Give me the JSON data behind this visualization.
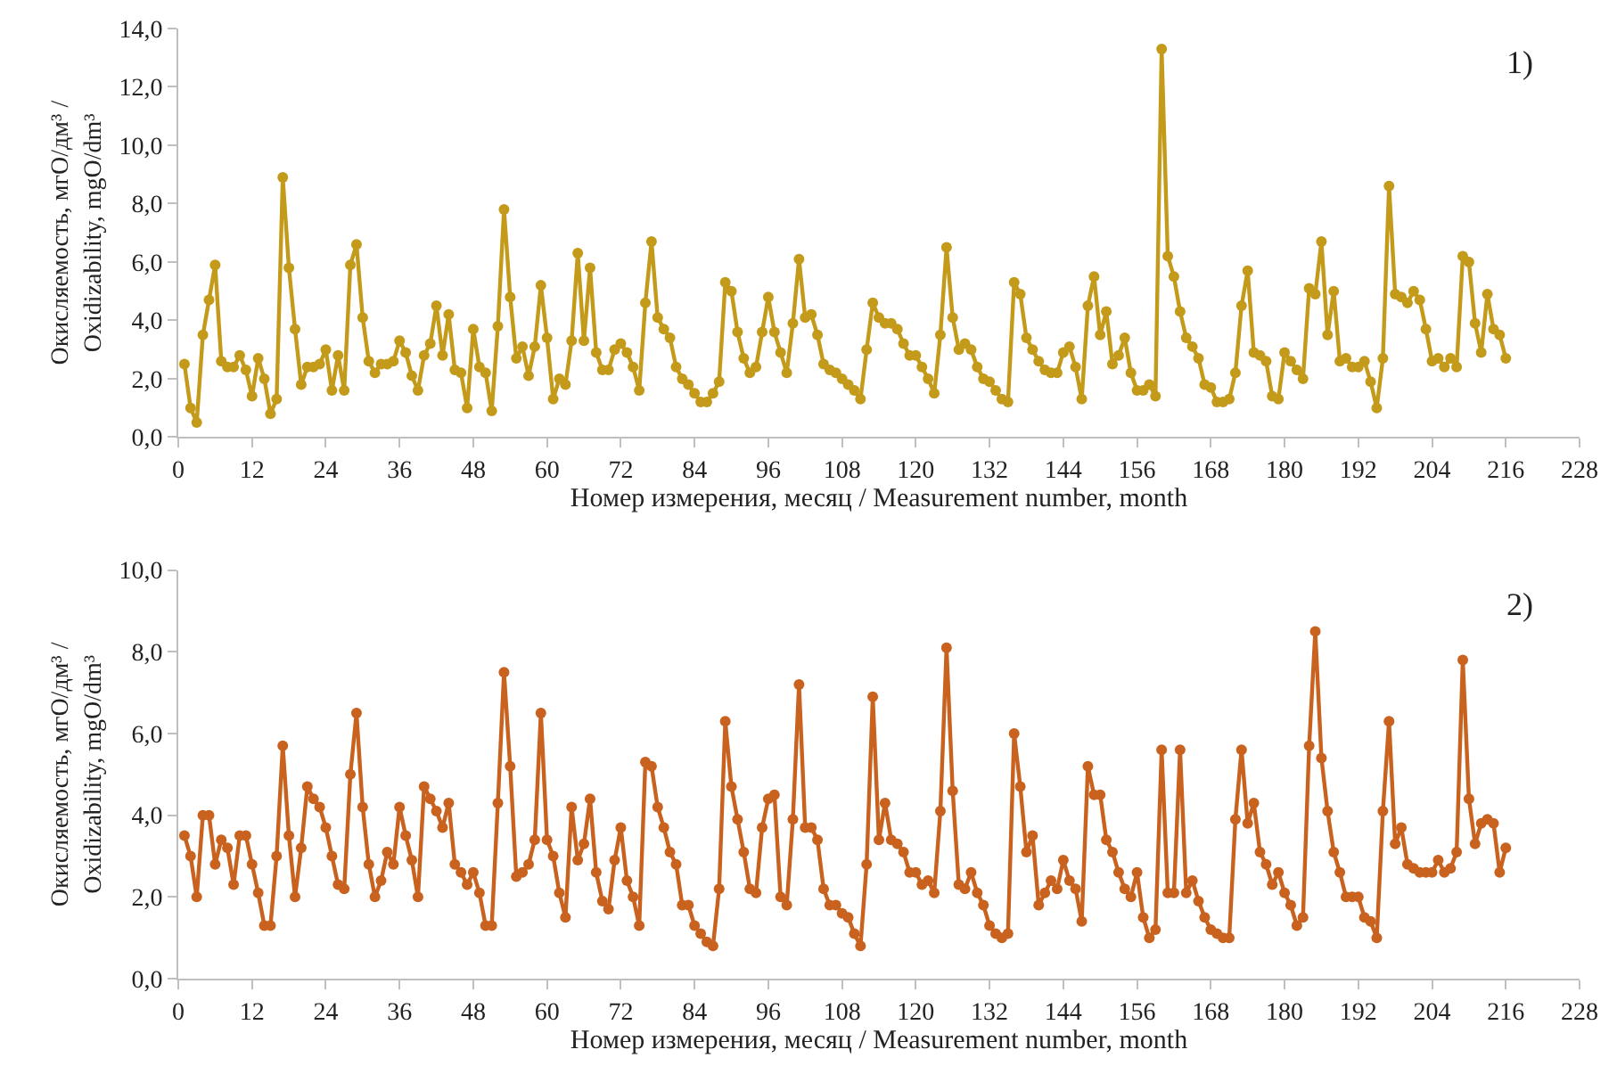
{
  "chart_data": [
    {
      "type": "line",
      "marker": "circle",
      "line_style": "solid",
      "xlabel": "Номер измерения, месяц / Measurement number, month",
      "ylabel": "Окисляемость, мгО/дм³ /\nOxidizability, mgO/dm³",
      "annotations": [
        "1)"
      ],
      "xlim": [
        0,
        228
      ],
      "xticks": [
        0,
        12,
        24,
        36,
        48,
        60,
        72,
        84,
        96,
        108,
        120,
        132,
        144,
        156,
        168,
        180,
        192,
        204,
        216,
        228
      ],
      "ylim": [
        0,
        14
      ],
      "yticks": [
        {
          "value": 0,
          "label": "0,0"
        },
        {
          "value": 2,
          "label": "2,0"
        },
        {
          "value": 4,
          "label": "4,0"
        },
        {
          "value": 6,
          "label": "6,0"
        },
        {
          "value": 8,
          "label": "8,0"
        },
        {
          "value": 10,
          "label": "10,0"
        },
        {
          "value": 12,
          "label": "12,0"
        },
        {
          "value": 14,
          "label": "14,0"
        }
      ],
      "x": [
        1,
        2,
        3,
        4,
        5,
        6,
        7,
        8,
        9,
        10,
        11,
        12,
        13,
        14,
        15,
        16,
        17,
        18,
        19,
        20,
        21,
        22,
        23,
        24,
        25,
        26,
        27,
        28,
        29,
        30,
        31,
        32,
        33,
        34,
        35,
        36,
        37,
        38,
        39,
        40,
        41,
        42,
        43,
        44,
        45,
        46,
        47,
        48,
        49,
        50,
        51,
        52,
        53,
        54,
        55,
        56,
        57,
        58,
        59,
        60,
        61,
        62,
        63,
        64,
        65,
        66,
        67,
        68,
        69,
        70,
        71,
        72,
        73,
        74,
        75,
        76,
        77,
        78,
        79,
        80,
        81,
        82,
        83,
        84,
        85,
        86,
        87,
        88,
        89,
        90,
        91,
        92,
        93,
        94,
        95,
        96,
        97,
        98,
        99,
        100,
        101,
        102,
        103,
        104,
        105,
        106,
        107,
        108,
        109,
        110,
        111,
        112,
        113,
        114,
        115,
        116,
        117,
        118,
        119,
        120,
        121,
        122,
        123,
        124,
        125,
        126,
        127,
        128,
        129,
        130,
        131,
        132,
        133,
        134,
        135,
        136,
        137,
        138,
        139,
        140,
        141,
        142,
        143,
        144,
        145,
        146,
        147,
        148,
        149,
        150,
        151,
        152,
        153,
        154,
        155,
        156,
        157,
        158,
        159,
        160,
        161,
        162,
        163,
        164,
        165,
        166,
        167,
        168,
        169,
        170,
        171,
        172,
        173,
        174,
        175,
        176,
        177,
        178,
        179,
        180,
        181,
        182,
        183,
        184,
        185,
        186,
        187,
        188,
        189,
        190,
        191,
        192,
        193,
        194,
        195,
        196,
        197,
        198,
        199,
        200,
        201,
        202,
        203,
        204,
        205,
        206,
        207,
        208,
        209,
        210,
        211,
        212,
        213,
        214,
        215,
        216
      ],
      "series": [
        {
          "color": "#c49a1a",
          "values": [
            2.5,
            1.0,
            0.5,
            3.5,
            4.7,
            5.9,
            2.6,
            2.4,
            2.4,
            2.8,
            2.3,
            1.4,
            2.7,
            2.0,
            0.8,
            1.3,
            8.9,
            5.8,
            3.7,
            1.8,
            2.4,
            2.4,
            2.5,
            3.0,
            1.6,
            2.8,
            1.6,
            5.9,
            6.6,
            4.1,
            2.6,
            2.2,
            2.5,
            2.5,
            2.6,
            3.3,
            2.9,
            2.1,
            1.6,
            2.8,
            3.2,
            4.5,
            2.8,
            4.2,
            2.3,
            2.2,
            1.0,
            3.7,
            2.4,
            2.2,
            0.9,
            3.8,
            7.8,
            4.8,
            2.7,
            3.1,
            2.1,
            3.1,
            5.2,
            3.4,
            1.3,
            2.0,
            1.8,
            3.3,
            6.3,
            3.3,
            5.8,
            2.9,
            2.3,
            2.3,
            3.0,
            3.2,
            2.9,
            2.4,
            1.6,
            4.6,
            6.7,
            4.1,
            3.7,
            3.4,
            2.4,
            2.0,
            1.8,
            1.5,
            1.2,
            1.2,
            1.5,
            1.9,
            5.3,
            5.0,
            3.6,
            2.7,
            2.2,
            2.4,
            3.6,
            4.8,
            3.6,
            2.9,
            2.2,
            3.9,
            6.1,
            4.1,
            4.2,
            3.5,
            2.5,
            2.3,
            2.2,
            2.0,
            1.8,
            1.6,
            1.3,
            3.0,
            4.6,
            4.1,
            3.9,
            3.9,
            3.7,
            3.2,
            2.8,
            2.8,
            2.4,
            2.0,
            1.5,
            3.5,
            6.5,
            4.1,
            3.0,
            3.2,
            3.0,
            2.4,
            2.0,
            1.9,
            1.6,
            1.3,
            1.2,
            5.3,
            4.9,
            3.4,
            3.0,
            2.6,
            2.3,
            2.2,
            2.2,
            2.9,
            3.1,
            2.4,
            1.3,
            4.5,
            5.5,
            3.5,
            4.3,
            2.5,
            2.8,
            3.4,
            2.2,
            1.6,
            1.6,
            1.8,
            1.4,
            13.3,
            6.2,
            5.5,
            4.3,
            3.4,
            3.1,
            2.7,
            1.8,
            1.7,
            1.2,
            1.2,
            1.3,
            2.2,
            4.5,
            5.7,
            2.9,
            2.8,
            2.6,
            1.4,
            1.3,
            2.9,
            2.6,
            2.3,
            2.0,
            5.1,
            4.9,
            6.7,
            3.5,
            5.0,
            2.6,
            2.7,
            2.4,
            2.4,
            2.6,
            1.9,
            1.0,
            2.7,
            8.6,
            4.9,
            4.8,
            4.6,
            5.0,
            4.7,
            3.7,
            2.6,
            2.7,
            2.4,
            2.7,
            2.4,
            6.2,
            6.0,
            3.9,
            2.9,
            4.9,
            3.7,
            3.5,
            2.7
          ]
        }
      ]
    },
    {
      "type": "line",
      "marker": "circle",
      "line_style": "solid",
      "xlabel": "Номер измерения, месяц / Measurement number, month",
      "ylabel": "Окисляемость, мгО/дм³ /\nOxidizability, mgO/dm³",
      "annotations": [
        "2)"
      ],
      "xlim": [
        0,
        228
      ],
      "xticks": [
        0,
        12,
        24,
        36,
        48,
        60,
        72,
        84,
        96,
        108,
        120,
        132,
        144,
        156,
        168,
        180,
        192,
        204,
        216,
        228
      ],
      "ylim": [
        0,
        10
      ],
      "yticks": [
        {
          "value": 0,
          "label": "0,0"
        },
        {
          "value": 2,
          "label": "2,0"
        },
        {
          "value": 4,
          "label": "4,0"
        },
        {
          "value": 6,
          "label": "6,0"
        },
        {
          "value": 8,
          "label": "8,0"
        },
        {
          "value": 10,
          "label": "10,0"
        }
      ],
      "x": [
        1,
        2,
        3,
        4,
        5,
        6,
        7,
        8,
        9,
        10,
        11,
        12,
        13,
        14,
        15,
        16,
        17,
        18,
        19,
        20,
        21,
        22,
        23,
        24,
        25,
        26,
        27,
        28,
        29,
        30,
        31,
        32,
        33,
        34,
        35,
        36,
        37,
        38,
        39,
        40,
        41,
        42,
        43,
        44,
        45,
        46,
        47,
        48,
        49,
        50,
        51,
        52,
        53,
        54,
        55,
        56,
        57,
        58,
        59,
        60,
        61,
        62,
        63,
        64,
        65,
        66,
        67,
        68,
        69,
        70,
        71,
        72,
        73,
        74,
        75,
        76,
        77,
        78,
        79,
        80,
        81,
        82,
        83,
        84,
        85,
        86,
        87,
        88,
        89,
        90,
        91,
        92,
        93,
        94,
        95,
        96,
        97,
        98,
        99,
        100,
        101,
        102,
        103,
        104,
        105,
        106,
        107,
        108,
        109,
        110,
        111,
        112,
        113,
        114,
        115,
        116,
        117,
        118,
        119,
        120,
        121,
        122,
        123,
        124,
        125,
        126,
        127,
        128,
        129,
        130,
        131,
        132,
        133,
        134,
        135,
        136,
        137,
        138,
        139,
        140,
        141,
        142,
        143,
        144,
        145,
        146,
        147,
        148,
        149,
        150,
        151,
        152,
        153,
        154,
        155,
        156,
        157,
        158,
        159,
        160,
        161,
        162,
        163,
        164,
        165,
        166,
        167,
        168,
        169,
        170,
        171,
        172,
        173,
        174,
        175,
        176,
        177,
        178,
        179,
        180,
        181,
        182,
        183,
        184,
        185,
        186,
        187,
        188,
        189,
        190,
        191,
        192,
        193,
        194,
        195,
        196,
        197,
        198,
        199,
        200,
        201,
        202,
        203,
        204,
        205,
        206,
        207,
        208,
        209,
        210,
        211,
        212,
        213,
        214,
        215,
        216
      ],
      "series": [
        {
          "color": "#c8621e",
          "values": [
            3.5,
            3.0,
            2.0,
            4.0,
            4.0,
            2.8,
            3.4,
            3.2,
            2.3,
            3.5,
            3.5,
            2.8,
            2.1,
            1.3,
            1.3,
            3.0,
            5.7,
            3.5,
            2.0,
            3.2,
            4.7,
            4.4,
            4.2,
            3.7,
            3.0,
            2.3,
            2.2,
            5.0,
            6.5,
            4.2,
            2.8,
            2.0,
            2.4,
            3.1,
            2.8,
            4.2,
            3.5,
            2.9,
            2.0,
            4.7,
            4.4,
            4.1,
            3.7,
            4.3,
            2.8,
            2.6,
            2.3,
            2.6,
            2.1,
            1.3,
            1.3,
            4.3,
            7.5,
            5.2,
            2.5,
            2.6,
            2.8,
            3.4,
            6.5,
            3.4,
            3.0,
            2.1,
            1.5,
            4.2,
            2.9,
            3.3,
            4.4,
            2.6,
            1.9,
            1.7,
            2.9,
            3.7,
            2.4,
            2.0,
            1.3,
            5.3,
            5.2,
            4.2,
            3.7,
            3.1,
            2.8,
            1.8,
            1.8,
            1.3,
            1.1,
            0.9,
            0.8,
            2.2,
            6.3,
            4.7,
            3.9,
            3.1,
            2.2,
            2.1,
            3.7,
            4.4,
            4.5,
            2.0,
            1.8,
            3.9,
            7.2,
            3.7,
            3.7,
            3.4,
            2.2,
            1.8,
            1.8,
            1.6,
            1.5,
            1.1,
            0.8,
            2.8,
            6.9,
            3.4,
            4.3,
            3.4,
            3.3,
            3.1,
            2.6,
            2.6,
            2.3,
            2.4,
            2.1,
            4.1,
            8.1,
            4.6,
            2.3,
            2.2,
            2.6,
            2.1,
            1.8,
            1.3,
            1.1,
            1.0,
            1.1,
            6.0,
            4.7,
            3.1,
            3.5,
            1.8,
            2.1,
            2.4,
            2.2,
            2.9,
            2.4,
            2.2,
            1.4,
            5.2,
            4.5,
            4.5,
            3.4,
            3.1,
            2.6,
            2.2,
            2.0,
            2.6,
            1.5,
            1.0,
            1.2,
            5.6,
            2.1,
            2.1,
            5.6,
            2.1,
            2.4,
            1.9,
            1.5,
            1.2,
            1.1,
            1.0,
            1.0,
            3.9,
            5.6,
            3.8,
            4.3,
            3.1,
            2.8,
            2.3,
            2.6,
            2.1,
            1.8,
            1.3,
            1.5,
            5.7,
            8.5,
            5.4,
            4.1,
            3.1,
            2.6,
            2.0,
            2.0,
            2.0,
            1.5,
            1.4,
            1.0,
            4.1,
            6.3,
            3.3,
            3.7,
            2.8,
            2.7,
            2.6,
            2.6,
            2.6,
            2.9,
            2.6,
            2.7,
            3.1,
            7.8,
            4.4,
            3.3,
            3.8,
            3.9,
            3.8,
            2.6,
            3.2
          ]
        }
      ]
    }
  ]
}
